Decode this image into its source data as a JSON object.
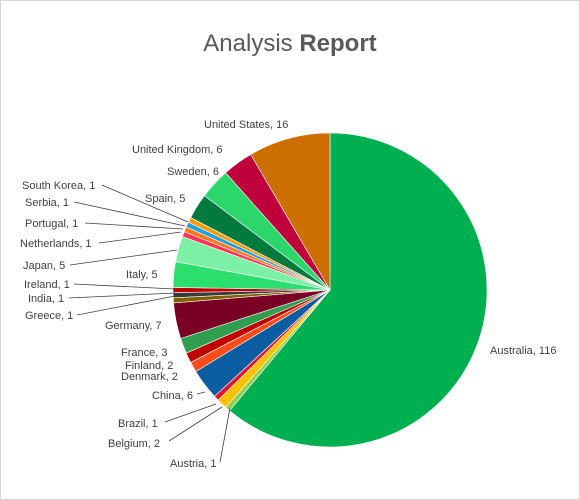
{
  "title": {
    "part1": "Analysis",
    "part2": "Report"
  },
  "chart_data": {
    "type": "pie",
    "title": "Analysis Report",
    "categories": [
      "Australia",
      "Austria",
      "Belgium",
      "Brazil",
      "China",
      "Denmark",
      "Finland",
      "France",
      "Germany",
      "Greece",
      "India",
      "Ireland",
      "Italy",
      "Japan",
      "Netherlands",
      "Portugal",
      "Serbia",
      "South Korea",
      "Spain",
      "Sweden",
      "United Kingdom",
      "United States"
    ],
    "values": [
      116,
      1,
      2,
      1,
      6,
      2,
      2,
      3,
      7,
      1,
      1,
      1,
      5,
      5,
      1,
      1,
      1,
      1,
      5,
      6,
      6,
      16
    ],
    "colors": [
      "#00b050",
      "#92d050",
      "#ffc000",
      "#e8102e",
      "#0b5da2",
      "#ff4a1a",
      "#c00000",
      "#2e9e4f",
      "#7a0026",
      "#7f6000",
      "#3a3a3a",
      "#c00000",
      "#2bdf6e",
      "#7cf0a4",
      "#ff3355",
      "#ff7a1a",
      "#1fa0e0",
      "#ff9900",
      "#007a3d",
      "#2bd66a",
      "#c0003c",
      "#cc6f00"
    ],
    "labels": [
      "Australia, 116",
      "Austria, 1",
      "Belgium, 2",
      "Brazil, 1",
      "China, 6",
      "Denmark, 2",
      "Finland, 2",
      "France, 3",
      "Germany, 7",
      "Greece, 1",
      "India, 1",
      "Ireland, 1",
      "Italy, 5",
      "Japan, 5",
      "Netherlands, 1",
      "Portugal, 1",
      "Serbia, 1",
      "South Korea, 1",
      "Spain, 5",
      "Sweden, 6",
      "United Kingdom, 6",
      "United States, 16"
    ],
    "legend": "none"
  }
}
